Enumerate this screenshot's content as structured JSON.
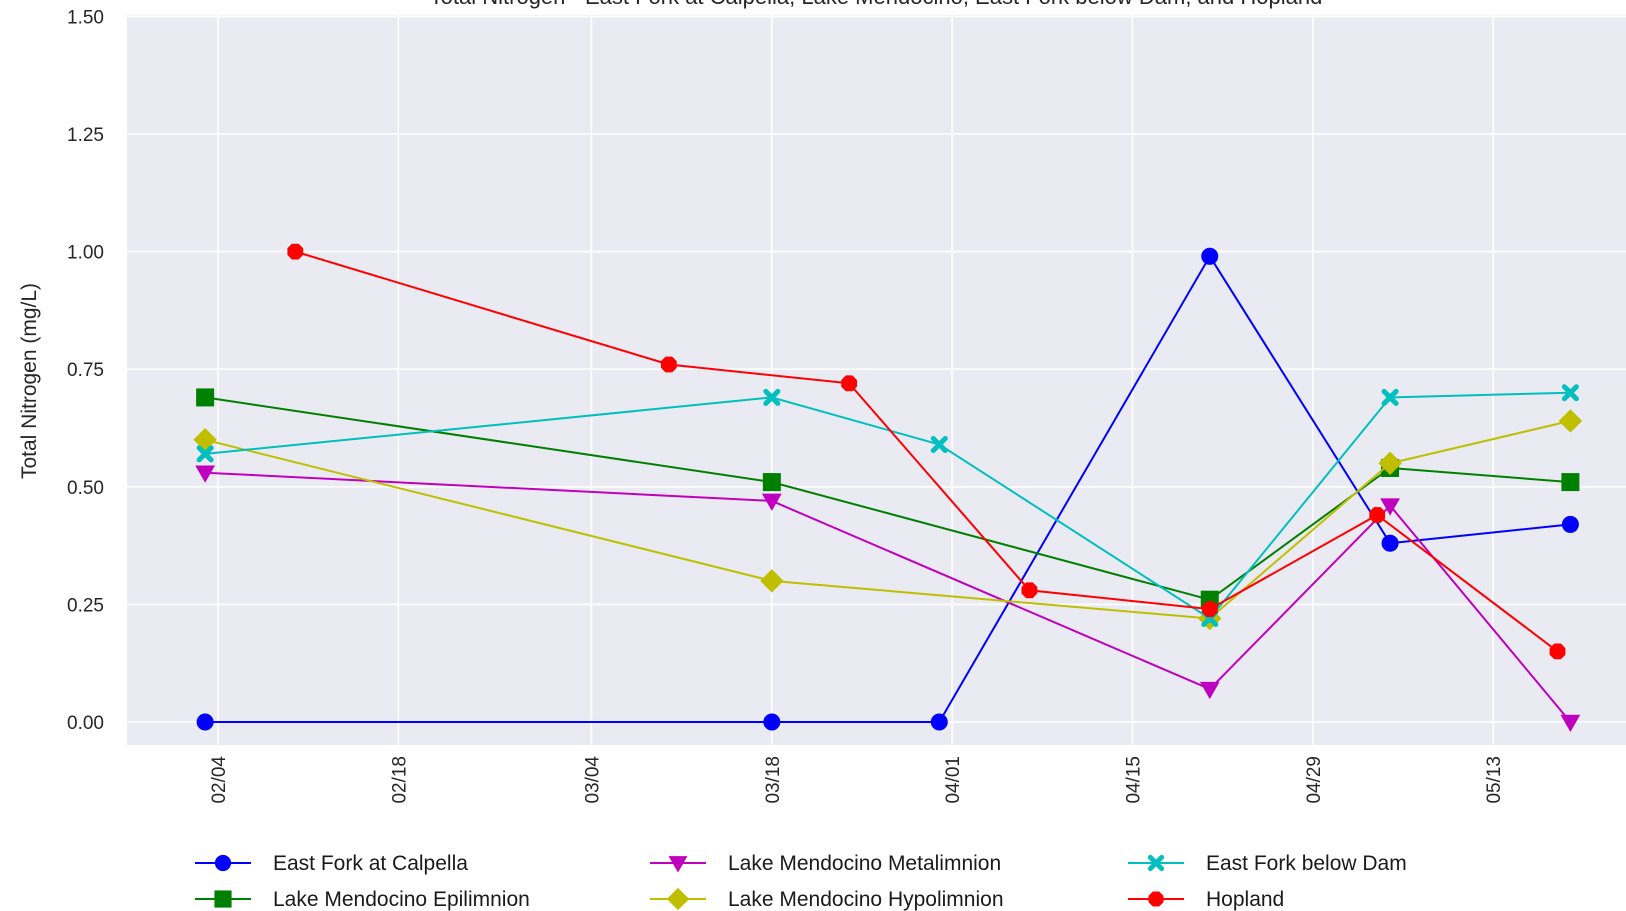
{
  "chart_data": {
    "type": "line",
    "title": "Total Nitrogen - East Fork at Calpella, Lake Mendocino, East Fork below Dam, and Hopland",
    "xlabel": "",
    "ylabel": "Total Nitrogen (mg/L)",
    "x_tick_labels": [
      "02/04",
      "02/18",
      "03/04",
      "03/18",
      "04/01",
      "04/15",
      "04/29",
      "05/13"
    ],
    "y_tick_labels": [
      "0.00",
      "0.25",
      "0.50",
      "0.75",
      "1.00",
      "1.25",
      "1.50"
    ],
    "ylim": [
      0,
      1.5
    ],
    "grid": true,
    "legend_position": "bottom",
    "series": [
      {
        "name": "East Fork at Calpella",
        "color": "#0000ff",
        "marker": "circle",
        "x": [
          "02/03",
          "03/18",
          "03/31",
          "04/21",
          "05/05",
          "05/19"
        ],
        "y": [
          0.0,
          0.0,
          0.0,
          0.99,
          0.38,
          0.42
        ]
      },
      {
        "name": "Lake Mendocino Epilimnion",
        "color": "#008000",
        "marker": "square",
        "x": [
          "02/03",
          "03/18",
          "04/21",
          "05/05",
          "05/19"
        ],
        "y": [
          0.69,
          0.51,
          0.26,
          0.54,
          0.51
        ]
      },
      {
        "name": "Lake Mendocino Metalimnion",
        "color": "#bf00bf",
        "marker": "triangle-down",
        "x": [
          "02/03",
          "03/18",
          "04/21",
          "05/05",
          "05/19"
        ],
        "y": [
          0.53,
          0.47,
          0.07,
          0.46,
          0.0
        ]
      },
      {
        "name": "Lake Mendocino Hypolimnion",
        "color": "#bfbf00",
        "marker": "diamond",
        "x": [
          "02/03",
          "03/18",
          "04/21",
          "05/05",
          "05/19"
        ],
        "y": [
          0.6,
          0.3,
          0.22,
          0.55,
          0.64
        ]
      },
      {
        "name": "East Fork below Dam",
        "color": "#00bfbf",
        "marker": "x",
        "x": [
          "02/03",
          "03/18",
          "03/31",
          "04/21",
          "05/05",
          "05/19"
        ],
        "y": [
          0.57,
          0.69,
          0.59,
          0.22,
          0.69,
          0.7
        ]
      },
      {
        "name": "Hopland",
        "color": "#ff0000",
        "marker": "octagon",
        "x": [
          "02/10",
          "03/10",
          "03/24",
          "04/07",
          "04/21",
          "05/04",
          "05/18"
        ],
        "y": [
          1.0,
          0.76,
          0.72,
          0.28,
          0.24,
          0.44,
          0.15
        ]
      }
    ]
  }
}
